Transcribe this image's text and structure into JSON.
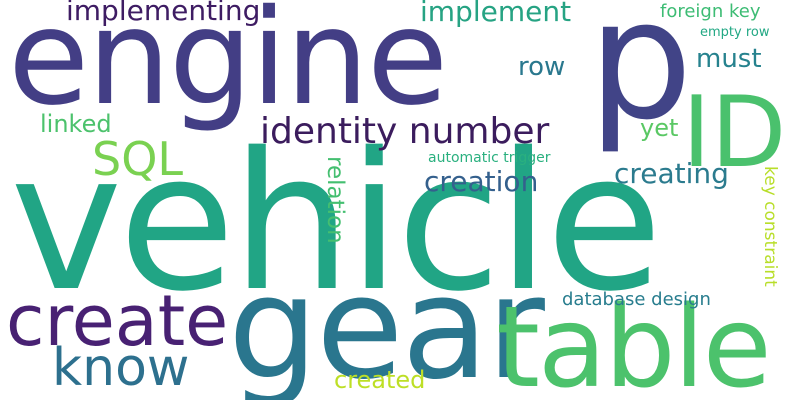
{
  "words": {
    "vehicle": "vehicle",
    "engine": "engine",
    "p": "p",
    "gear": "gear",
    "table": "table",
    "id": "ID",
    "create": "create",
    "know": "know",
    "sql": "SQL",
    "identity_number": "identity number",
    "implementing": "implementing",
    "implement": "implement",
    "row": "row",
    "must": "must",
    "creation": "creation",
    "creating": "creating",
    "yet": "yet",
    "linked": "linked",
    "created": "created",
    "foreign_key": "foreign key",
    "empty_row": "empty row",
    "automatic_trigger": "automatic trigger",
    "database_design": "database design",
    "relation": "relation",
    "key_constraint": "key constraint"
  },
  "colors": {
    "background": "#ffffff",
    "palette": "viridis"
  }
}
